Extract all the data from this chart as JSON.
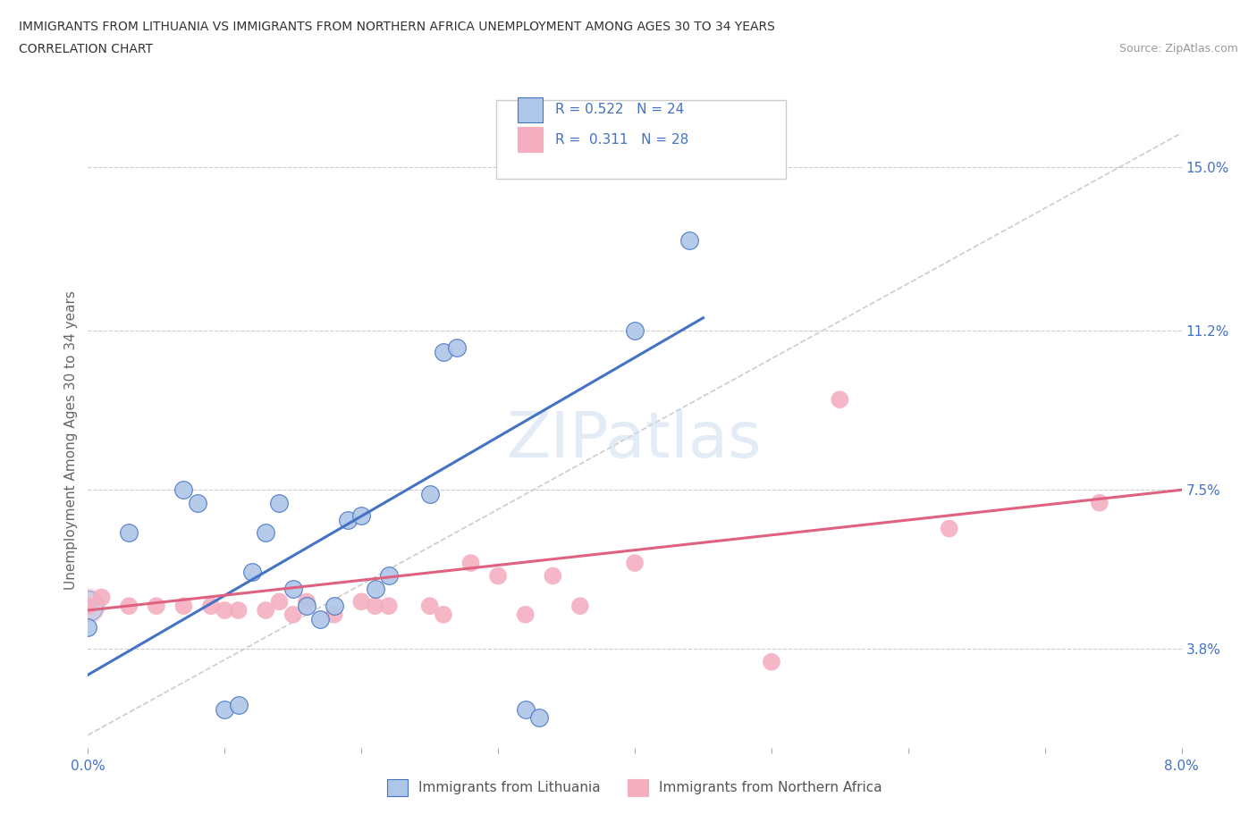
{
  "title_line1": "IMMIGRANTS FROM LITHUANIA VS IMMIGRANTS FROM NORTHERN AFRICA UNEMPLOYMENT AMONG AGES 30 TO 34 YEARS",
  "title_line2": "CORRELATION CHART",
  "source": "Source: ZipAtlas.com",
  "ylabel": "Unemployment Among Ages 30 to 34 years",
  "xmin": 0.0,
  "xmax": 0.08,
  "ymin": 0.015,
  "ymax": 0.158,
  "ytick_positions": [
    0.038,
    0.075,
    0.112,
    0.15
  ],
  "ytick_labels": [
    "3.8%",
    "7.5%",
    "11.2%",
    "15.0%"
  ],
  "R_lithuania": 0.522,
  "N_lithuania": 24,
  "R_n_africa": 0.311,
  "N_n_africa": 28,
  "color_lithuania": "#aec6e8",
  "color_n_africa": "#f4aec0",
  "line_color_lithuania": "#4472c4",
  "line_color_n_africa": "#e06080",
  "legend_label_1": "Immigrants from Lithuania",
  "legend_label_2": "Immigrants from Northern Africa",
  "lith_x": [
    0.0,
    0.003,
    0.007,
    0.008,
    0.01,
    0.011,
    0.012,
    0.013,
    0.014,
    0.015,
    0.016,
    0.017,
    0.018,
    0.019,
    0.02,
    0.021,
    0.022,
    0.025,
    0.026,
    0.027,
    0.032,
    0.033,
    0.04,
    0.044
  ],
  "lith_y": [
    0.043,
    0.065,
    0.075,
    0.072,
    0.024,
    0.025,
    0.056,
    0.065,
    0.072,
    0.052,
    0.048,
    0.045,
    0.048,
    0.068,
    0.069,
    0.052,
    0.055,
    0.074,
    0.107,
    0.108,
    0.024,
    0.022,
    0.112,
    0.133
  ],
  "nafr_x": [
    0.0,
    0.001,
    0.003,
    0.005,
    0.007,
    0.009,
    0.01,
    0.011,
    0.013,
    0.014,
    0.015,
    0.016,
    0.018,
    0.02,
    0.021,
    0.022,
    0.025,
    0.026,
    0.028,
    0.03,
    0.032,
    0.034,
    0.036,
    0.04,
    0.05,
    0.055,
    0.063,
    0.074
  ],
  "nafr_y": [
    0.048,
    0.05,
    0.048,
    0.048,
    0.048,
    0.048,
    0.047,
    0.047,
    0.047,
    0.049,
    0.046,
    0.049,
    0.046,
    0.049,
    0.048,
    0.048,
    0.048,
    0.046,
    0.058,
    0.055,
    0.046,
    0.055,
    0.048,
    0.058,
    0.035,
    0.096,
    0.066,
    0.072
  ]
}
